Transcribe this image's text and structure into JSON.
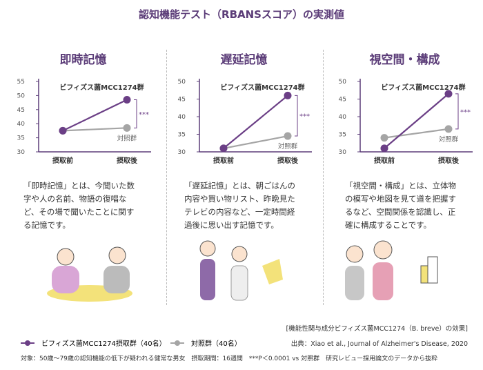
{
  "header": {
    "title": "認知機能テスト（RBANSスコア）の実測値"
  },
  "chart_data": [
    {
      "type": "line",
      "title": "即時記憶",
      "categories": [
        "摂取前",
        "摂取後"
      ],
      "series": [
        {
          "name": "ビフィズス菌MCC1274群",
          "color": "#6b3f86",
          "values": [
            37.5,
            48.5
          ]
        },
        {
          "name": "対照群",
          "color": "#a5a5a5",
          "values": [
            37.5,
            38.5
          ]
        }
      ],
      "ylim": [
        30,
        55
      ],
      "yticks": [
        30,
        35,
        40,
        45,
        50,
        55
      ],
      "annotation": "***",
      "description": "「即時記憶」とは、今聞いた数字や人の名前、物語の復唱など、その場で聞いたことに関する記憶です。"
    },
    {
      "type": "line",
      "title": "遅延記憶",
      "categories": [
        "摂取前",
        "摂取後"
      ],
      "series": [
        {
          "name": "ビフィズス菌MCC1274群",
          "color": "#6b3f86",
          "values": [
            31,
            46
          ]
        },
        {
          "name": "対照群",
          "color": "#a5a5a5",
          "values": [
            31,
            34.5
          ]
        }
      ],
      "ylim": [
        30,
        50
      ],
      "yticks": [
        30,
        35,
        40,
        45,
        50
      ],
      "annotation": "***",
      "description": "「遅延記憶」とは、朝ごはんの内容や買い物リスト、昨晩見たテレビの内容など、一定時間経過後に思い出す記憶です。"
    },
    {
      "type": "line",
      "title": "視空間・構成",
      "categories": [
        "摂取前",
        "摂取後"
      ],
      "series": [
        {
          "name": "ビフィズス菌MCC1274群",
          "color": "#6b3f86",
          "values": [
            31,
            46.5
          ]
        },
        {
          "name": "対照群",
          "color": "#a5a5a5",
          "values": [
            34,
            36.5
          ]
        }
      ],
      "ylim": [
        30,
        50
      ],
      "yticks": [
        30,
        35,
        40,
        45,
        50
      ],
      "annotation": "***",
      "description": "「視空間・構成」とは、立体物の模写や地図を見て道を把握するなど、空間関係を認識し、正確に構成することです。"
    }
  ],
  "legend": [
    "ビフィズス菌MCC1274摂取群（40名）",
    "対照群（40名）"
  ],
  "footer": {
    "caption": "[機能性関与成分ビフィズス菌MCC1274（B. breve）の効果]",
    "source": "出典：Xiao et al., Journal of Alzheimer's Disease, 2020",
    "note": "対象：50歳〜79歳の認知機能の低下が疑われる健常な男女　摂取期間：16週間　***P＜0.0001 vs 対照群　研究レビュー採用論文のデータから抜粋"
  }
}
